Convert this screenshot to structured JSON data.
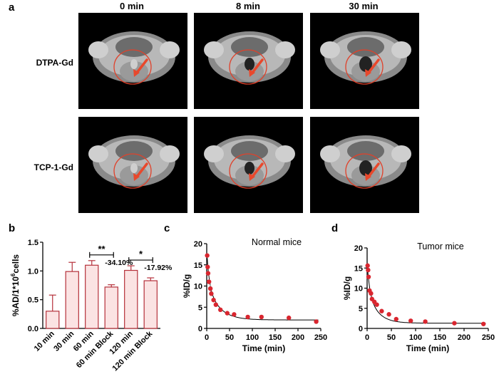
{
  "figure": {
    "panel_a": {
      "letter": "a",
      "columns": [
        "0 min",
        "8 min",
        "30 min"
      ],
      "rows": [
        "DTPA-Gd",
        "TCP-1-Gd"
      ],
      "circle_color": "#e0412a",
      "arrow_color": "#e8482c"
    },
    "panel_b": {
      "letter": "b"
    },
    "panel_c": {
      "letter": "c"
    },
    "panel_d": {
      "letter": "d"
    }
  },
  "chart_data": [
    {
      "id": "b",
      "type": "bar",
      "categories": [
        "10 min",
        "30 min",
        "60 min",
        "60 min Block",
        "120 min",
        "120 min Block"
      ],
      "values": [
        0.3,
        0.99,
        1.1,
        0.72,
        1.01,
        0.83
      ],
      "errors": [
        0.28,
        0.16,
        0.08,
        0.04,
        0.08,
        0.05
      ],
      "ylabel": "%AD/1*10",
      "ylabel_sup": "6",
      "ylabel_tail": "cells",
      "ylim": [
        0,
        1.5
      ],
      "yticks": [
        0.0,
        0.5,
        1.0,
        1.5
      ],
      "ytick_labels": [
        "0.0",
        "0.5",
        "1.0",
        "1.5"
      ],
      "bar_fill": "#fbe3e3",
      "bar_edge": "#b5303a",
      "annotations": [
        {
          "between": [
            "60 min",
            "60 min Block"
          ],
          "stars": "**",
          "label": "-34.10%"
        },
        {
          "between": [
            "120 min",
            "120 min Block"
          ],
          "stars": "*",
          "label": "-17.92%"
        }
      ]
    },
    {
      "id": "c",
      "type": "scatter",
      "title": "Normal mice",
      "xlabel": "Time (min)",
      "ylabel": "%ID/g",
      "xlim": [
        0,
        250
      ],
      "ylim": [
        0,
        20
      ],
      "xticks": [
        0,
        50,
        100,
        150,
        200,
        250
      ],
      "yticks": [
        0,
        5,
        10,
        15,
        20
      ],
      "x": [
        1,
        2,
        3,
        5,
        8,
        10,
        15,
        20,
        30,
        45,
        60,
        90,
        120,
        180,
        240
      ],
      "y": [
        17.2,
        14.5,
        13.0,
        11.0,
        9.4,
        8.2,
        6.7,
        5.6,
        4.4,
        3.6,
        3.3,
        2.7,
        2.7,
        2.5,
        1.6
      ],
      "errors": [
        0.6,
        0.5,
        0.5,
        0.6,
        1.2,
        0.6,
        0.5,
        0.4,
        0.4,
        0.3,
        0.3,
        0.2,
        0.2,
        0.2,
        0.2
      ],
      "fit": {
        "a": 7.5,
        "k1": 0.2,
        "b": 9.0,
        "k2": 0.04,
        "c": 2.0
      },
      "point_color": "#d9262f"
    },
    {
      "id": "d",
      "type": "scatter",
      "title": "Tumor mice",
      "xlabel": "Time (min)",
      "ylabel": "%ID/g",
      "xlim": [
        0,
        250
      ],
      "ylim": [
        0,
        20
      ],
      "xticks": [
        0,
        50,
        100,
        150,
        200,
        250
      ],
      "yticks": [
        0,
        5,
        10,
        15,
        20
      ],
      "x": [
        1,
        2,
        3,
        5,
        8,
        10,
        15,
        20,
        30,
        45,
        60,
        90,
        120,
        180,
        240
      ],
      "y": [
        15.6,
        14.5,
        12.8,
        9.4,
        8.7,
        7.3,
        6.6,
        5.9,
        4.3,
        3.5,
        2.3,
        1.9,
        1.7,
        1.3,
        1.1
      ],
      "errors": [
        0.5,
        0.5,
        0.5,
        0.5,
        0.4,
        0.4,
        0.3,
        0.3,
        0.3,
        0.2,
        0.2,
        0.2,
        0.2,
        0.2,
        0.2
      ],
      "fit": {
        "a": 6.5,
        "k1": 0.2,
        "b": 8.5,
        "k2": 0.05,
        "c": 1.3
      },
      "point_color": "#d9262f"
    }
  ]
}
